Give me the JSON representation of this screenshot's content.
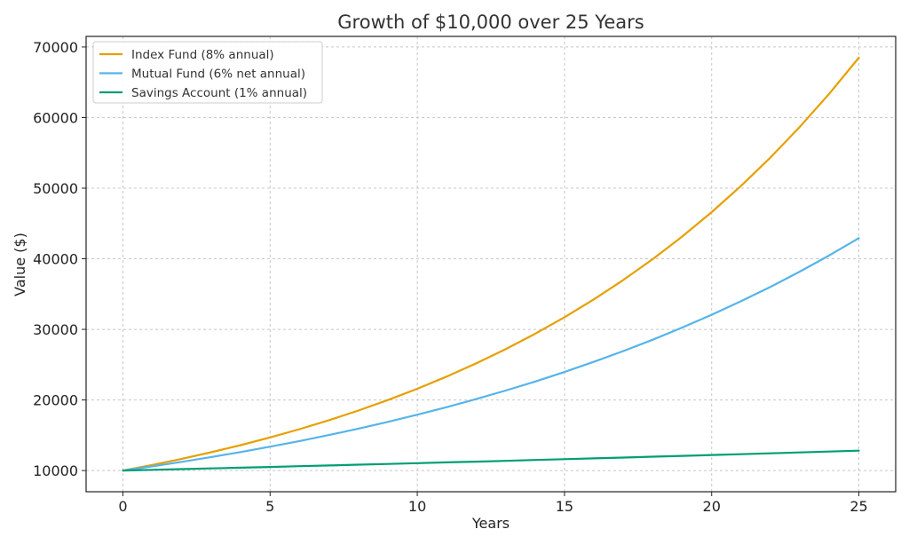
{
  "chart_data": {
    "type": "line",
    "title": "Growth of $10,000 over 25 Years",
    "xlabel": "Years",
    "ylabel": "Value ($)",
    "xlim": [
      -1.25,
      26.25
    ],
    "ylim": [
      7000,
      71500
    ],
    "xticks": [
      0,
      5,
      10,
      15,
      20,
      25
    ],
    "yticks": [
      10000,
      20000,
      30000,
      40000,
      50000,
      60000,
      70000
    ],
    "grid": true,
    "legend_position": "top-left",
    "x": [
      0,
      1,
      2,
      3,
      4,
      5,
      6,
      7,
      8,
      9,
      10,
      11,
      12,
      13,
      14,
      15,
      16,
      17,
      18,
      19,
      20,
      21,
      22,
      23,
      24,
      25
    ],
    "series": [
      {
        "name": "Index Fund (8% annual)",
        "color": "#E69F00",
        "values": [
          10000,
          10800,
          11664,
          12597,
          13605,
          14693,
          15869,
          17138,
          18509,
          19990,
          21589,
          23316,
          25182,
          27196,
          29372,
          31722,
          34259,
          37000,
          39960,
          43157,
          46610,
          50338,
          54365,
          58715,
          63412,
          68485
        ]
      },
      {
        "name": "Mutual Fund (6% net annual)",
        "color": "#56B4E9",
        "values": [
          10000,
          10600,
          11236,
          11910,
          12625,
          13382,
          14185,
          15036,
          15938,
          16895,
          17908,
          18983,
          20122,
          21329,
          22609,
          23966,
          25404,
          26928,
          28543,
          30256,
          32071,
          33996,
          36035,
          38197,
          40489,
          42919
        ]
      },
      {
        "name": "Savings Account (1% annual)",
        "color": "#009E73",
        "values": [
          10000,
          10100,
          10201,
          10303,
          10406,
          10510,
          10615,
          10721,
          10829,
          10937,
          11046,
          11157,
          11268,
          11381,
          11495,
          11610,
          11726,
          11843,
          11961,
          12081,
          12202,
          12324,
          12447,
          12572,
          12697,
          12824
        ]
      }
    ]
  }
}
